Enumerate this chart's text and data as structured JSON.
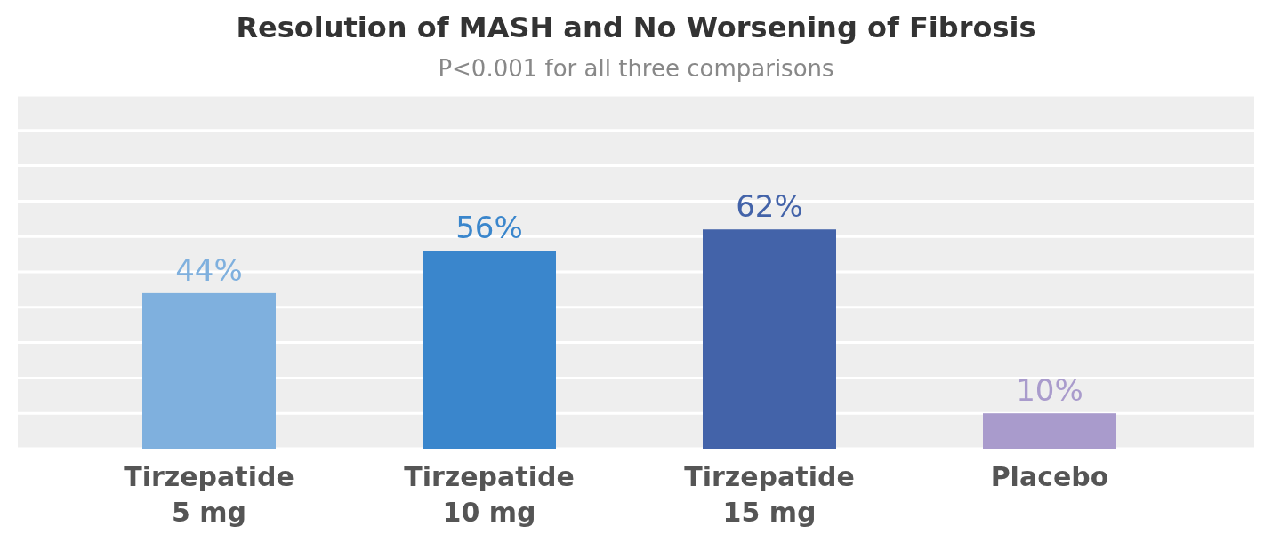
{
  "chart_data": {
    "type": "bar",
    "title": "Resolution of MASH and No Worsening of Fibrosis",
    "subtitle": "P<0.001 for all three comparisons",
    "categories": [
      "Tirzepatide\n5 mg",
      "Tirzepatide\n10 mg",
      "Tirzepatide\n15 mg",
      "Placebo"
    ],
    "values": [
      44,
      56,
      62,
      10
    ],
    "colors": [
      "#7fb0de",
      "#3a86cc",
      "#4363a9",
      "#a99bcc"
    ],
    "value_labels": [
      "44%",
      "56%",
      "62%",
      "10%"
    ],
    "ylim": [
      0,
      100
    ],
    "yticks": [
      {
        "value": 0,
        "label": null
      },
      {
        "value": 10,
        "label": null
      },
      {
        "value": 20,
        "label": null
      },
      {
        "value": 30,
        "label": null
      },
      {
        "value": 40,
        "label": null
      },
      {
        "value": 50,
        "label": null
      },
      {
        "value": 60,
        "label": null
      },
      {
        "value": 70,
        "label": null
      },
      {
        "value": 80,
        "label": null
      },
      {
        "value": 90,
        "label": null
      },
      {
        "value": 100,
        "label": null
      }
    ],
    "tick_labels": "x",
    "grid": "y"
  }
}
